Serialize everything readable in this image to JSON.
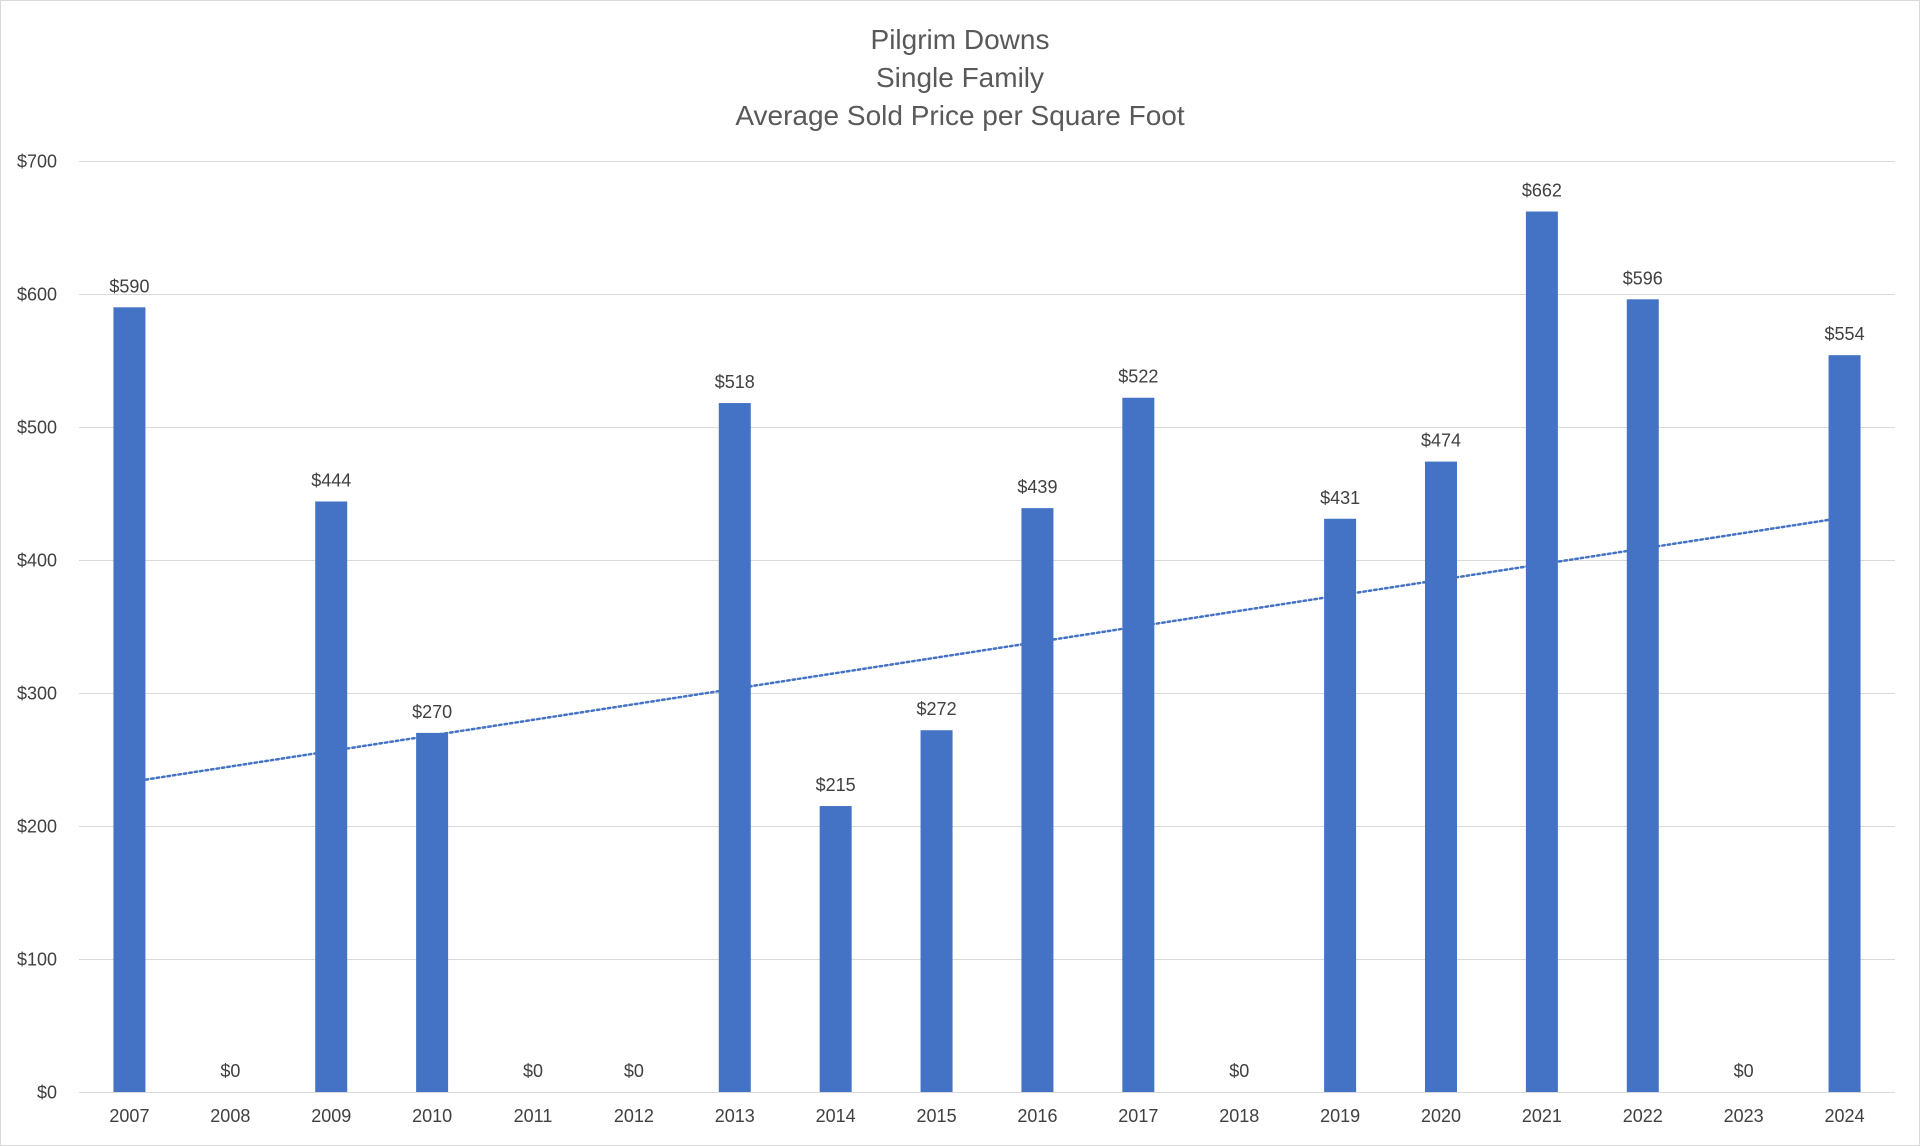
{
  "chart_data": {
    "type": "bar",
    "title_lines": [
      "Pilgrim Downs",
      "Single Family",
      "Average Sold Price per Square Foot"
    ],
    "xlabel": "",
    "ylabel": "",
    "categories": [
      "2007",
      "2008",
      "2009",
      "2010",
      "2011",
      "2012",
      "2013",
      "2014",
      "2015",
      "2016",
      "2017",
      "2018",
      "2019",
      "2020",
      "2021",
      "2022",
      "2023",
      "2024"
    ],
    "values": [
      590,
      0,
      444,
      270,
      0,
      0,
      518,
      215,
      272,
      439,
      522,
      0,
      431,
      474,
      662,
      596,
      0,
      554
    ],
    "data_labels": [
      "$590",
      "$0",
      "$444",
      "$270",
      "$0",
      "$0",
      "$518",
      "$215",
      "$272",
      "$439",
      "$522",
      "$0",
      "$431",
      "$474",
      "$662",
      "$596",
      "$0",
      "$554"
    ],
    "ylim": [
      0,
      700
    ],
    "y_ticks": [
      0,
      100,
      200,
      300,
      400,
      500,
      600,
      700
    ],
    "y_tick_labels": [
      "$0",
      "$100",
      "$200",
      "$300",
      "$400",
      "$500",
      "$600",
      "$700"
    ],
    "grid": true,
    "legend": "none",
    "trendline": {
      "type": "linear",
      "style": "dotted",
      "start_value": 233,
      "end_value": 432
    },
    "colors": {
      "bar": "#4472C4",
      "trendline": "#4472C4",
      "grid": "#d9d9d9",
      "text": "#404040",
      "title": "#595959"
    }
  }
}
